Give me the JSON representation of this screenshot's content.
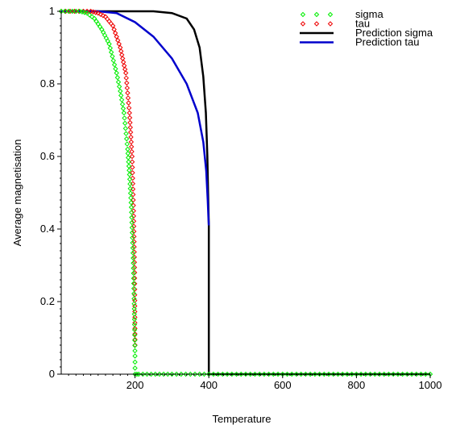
{
  "chart_data": {
    "type": "line",
    "title": "",
    "xlabel": "Temperature",
    "ylabel": "Average magnetisation",
    "xlim": [
      0,
      1000
    ],
    "ylim": [
      0,
      1
    ],
    "xticks": [
      "200",
      "400",
      "600",
      "800",
      "1000"
    ],
    "yticks": [
      "0",
      "0.2",
      "0.4",
      "0.6",
      "0.8",
      "1"
    ],
    "grid": false,
    "legend_position": "top-right",
    "series": [
      {
        "name": "sigma",
        "style": "points",
        "color": "#00ee00",
        "x": [
          0,
          30,
          50,
          70,
          90,
          110,
          130,
          150,
          160,
          170,
          180,
          185,
          190,
          195,
          198,
          200,
          200,
          210,
          300,
          400,
          500,
          600,
          700,
          800,
          900,
          1000
        ],
        "y": [
          1.0,
          1.0,
          1.0,
          0.995,
          0.98,
          0.95,
          0.91,
          0.83,
          0.78,
          0.72,
          0.62,
          0.55,
          0.46,
          0.32,
          0.18,
          0.05,
          0.0,
          0.0,
          0.0,
          0.0,
          0.0,
          0.0,
          0.0,
          0.0,
          0.0,
          0.0
        ]
      },
      {
        "name": "tau",
        "style": "points",
        "color": "#ee0000",
        "x": [
          0,
          60,
          80,
          100,
          120,
          140,
          160,
          175,
          185,
          192,
          196,
          199,
          200
        ],
        "y": [
          1.0,
          1.0,
          1.0,
          0.995,
          0.985,
          0.96,
          0.9,
          0.83,
          0.72,
          0.6,
          0.45,
          0.28,
          0.08
        ]
      },
      {
        "name": "Prediction sigma",
        "style": "line",
        "color": "#000000",
        "x": [
          0,
          250,
          300,
          340,
          360,
          375,
          385,
          392,
          396,
          398,
          400,
          400,
          401,
          1000
        ],
        "y": [
          1.0,
          1.0,
          0.995,
          0.98,
          0.95,
          0.9,
          0.82,
          0.72,
          0.6,
          0.5,
          0.41,
          0.0,
          0.0,
          0.0
        ]
      },
      {
        "name": "Prediction tau",
        "style": "line",
        "color": "#0000cc",
        "x": [
          0,
          100,
          150,
          200,
          250,
          300,
          340,
          370,
          385,
          393,
          397,
          399,
          400
        ],
        "y": [
          1.0,
          1.0,
          0.995,
          0.97,
          0.93,
          0.87,
          0.8,
          0.72,
          0.64,
          0.56,
          0.48,
          0.43,
          0.41
        ]
      }
    ]
  }
}
